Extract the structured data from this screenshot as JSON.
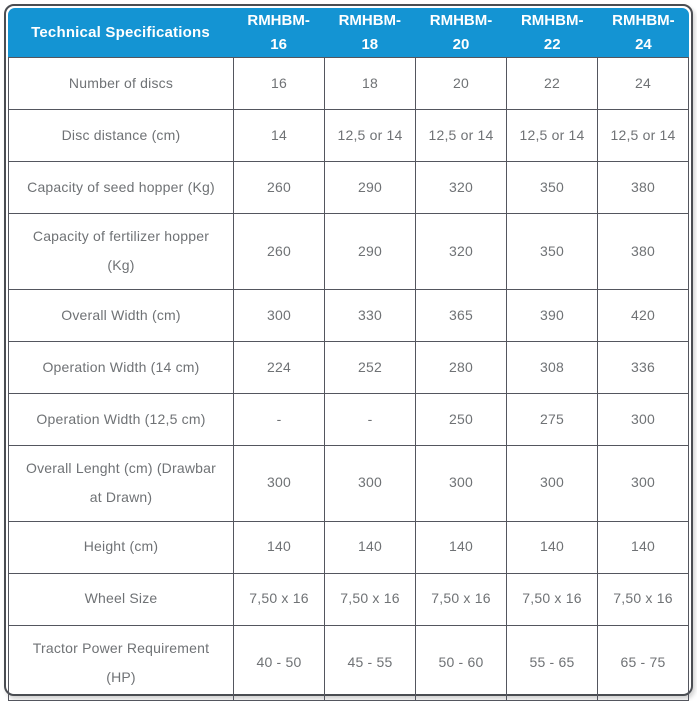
{
  "table": {
    "header": {
      "title": "Technical Specifications",
      "columns": [
        "RMHBM-16",
        "RMHBM-18",
        "RMHBM-20",
        "RMHBM-22",
        "RMHBM-24"
      ]
    },
    "rows": [
      {
        "label": "Number of discs",
        "values": [
          "16",
          "18",
          "20",
          "22",
          "24"
        ]
      },
      {
        "label": "Disc distance (cm)",
        "values": [
          "14",
          "12,5 or 14",
          "12,5 or 14",
          "12,5 or 14",
          "12,5 or 14"
        ]
      },
      {
        "label": "Capacity of seed hopper (Kg)",
        "values": [
          "260",
          "290",
          "320",
          "350",
          "380"
        ]
      },
      {
        "label": "Capacity of fertilizer hopper (Kg)",
        "values": [
          "260",
          "290",
          "320",
          "350",
          "380"
        ]
      },
      {
        "label": "Overall Width (cm)",
        "values": [
          "300",
          "330",
          "365",
          "390",
          "420"
        ]
      },
      {
        "label": "Operation Width (14 cm)",
        "values": [
          "224",
          "252",
          "280",
          "308",
          "336"
        ]
      },
      {
        "label": "Operation Width (12,5 cm)",
        "values": [
          "-",
          "-",
          "250",
          "275",
          "300"
        ]
      },
      {
        "label": "Overall Lenght (cm) (Drawbar at Drawn)",
        "values": [
          "300",
          "300",
          "300",
          "300",
          "300"
        ]
      },
      {
        "label": "Height (cm)",
        "values": [
          "140",
          "140",
          "140",
          "140",
          "140"
        ]
      },
      {
        "label": "Wheel Size",
        "values": [
          "7,50 x 16",
          "7,50 x 16",
          "7,50 x 16",
          "7,50 x 16",
          "7,50 x 16"
        ]
      },
      {
        "label": "Tractor Power Requirement (HP)",
        "values": [
          "40 - 50",
          "45 - 55",
          "50 - 60",
          "55 - 65",
          "65 - 75"
        ]
      }
    ],
    "colors": {
      "header_bg": "#1494D3",
      "header_text": "#FFFFFF",
      "body_text": "#6F7275",
      "grid_line": "#54565E",
      "outer_border": "#4A4D52"
    }
  }
}
